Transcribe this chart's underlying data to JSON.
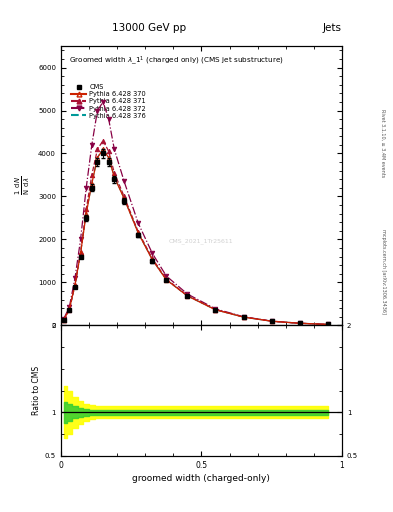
{
  "title_top": "13000 GeV pp",
  "title_right": "Jets",
  "plot_title": "Groomed width $\\lambda$_1$^1$ (charged only) (CMS jet substructure)",
  "xlabel": "groomed width (charged-only)",
  "right_label_top": "Rivet 3.1.10, ≥ 3.4M events",
  "right_label_bot": "mcplots.cern.ch [arXiv:1306.3436]",
  "watermark": "CMS_2021_1Tr25611",
  "x_edges": [
    0.0,
    0.02,
    0.04,
    0.06,
    0.08,
    0.1,
    0.12,
    0.14,
    0.16,
    0.18,
    0.2,
    0.25,
    0.3,
    0.35,
    0.4,
    0.5,
    0.6,
    0.7,
    0.8,
    0.9,
    1.0
  ],
  "cms_y": [
    120,
    350,
    900,
    1600,
    2500,
    3200,
    3800,
    4000,
    3800,
    3400,
    2900,
    2100,
    1500,
    1050,
    680,
    360,
    190,
    95,
    47,
    22
  ],
  "py370_y": [
    130,
    370,
    950,
    1680,
    2600,
    3300,
    3900,
    4100,
    3900,
    3450,
    2950,
    2150,
    1530,
    1060,
    685,
    362,
    192,
    96,
    48,
    22
  ],
  "py371_y": [
    125,
    360,
    930,
    1700,
    2700,
    3500,
    4100,
    4300,
    4050,
    3550,
    3000,
    2180,
    1560,
    1080,
    695,
    368,
    194,
    97,
    48,
    22
  ],
  "py372_y": [
    150,
    430,
    1100,
    2000,
    3200,
    4200,
    5000,
    5200,
    4800,
    4100,
    3350,
    2380,
    1680,
    1150,
    730,
    385,
    200,
    99,
    49,
    23
  ],
  "py376_y": [
    128,
    365,
    945,
    1685,
    2610,
    3310,
    3910,
    4110,
    3910,
    3460,
    2960,
    2155,
    1535,
    1062,
    687,
    363,
    192,
    96,
    48,
    22
  ],
  "yellow_upper": [
    1.3,
    1.25,
    1.18,
    1.13,
    1.1,
    1.08,
    1.07,
    1.07,
    1.07,
    1.07,
    1.07,
    1.07,
    1.07,
    1.07,
    1.07,
    1.07,
    1.07,
    1.07,
    1.07,
    1.07
  ],
  "yellow_lower": [
    0.7,
    0.75,
    0.82,
    0.87,
    0.9,
    0.92,
    0.93,
    0.93,
    0.93,
    0.93,
    0.93,
    0.93,
    0.93,
    0.93,
    0.93,
    0.93,
    0.93,
    0.93,
    0.93,
    0.93
  ],
  "green_upper": [
    1.12,
    1.1,
    1.07,
    1.05,
    1.04,
    1.03,
    1.03,
    1.03,
    1.03,
    1.03,
    1.03,
    1.03,
    1.03,
    1.03,
    1.03,
    1.03,
    1.03,
    1.03,
    1.03,
    1.03
  ],
  "green_lower": [
    0.88,
    0.9,
    0.93,
    0.95,
    0.96,
    0.97,
    0.97,
    0.97,
    0.97,
    0.97,
    0.97,
    0.97,
    0.97,
    0.97,
    0.97,
    0.97,
    0.97,
    0.97,
    0.97,
    0.97
  ],
  "ylim_main_max": 6500,
  "yticks_main": [
    0,
    1000,
    2000,
    3000,
    4000,
    5000,
    6000
  ],
  "color_370": "#cc2200",
  "color_371": "#aa1133",
  "color_372": "#880044",
  "color_376": "#009999",
  "color_cms": "#000000"
}
